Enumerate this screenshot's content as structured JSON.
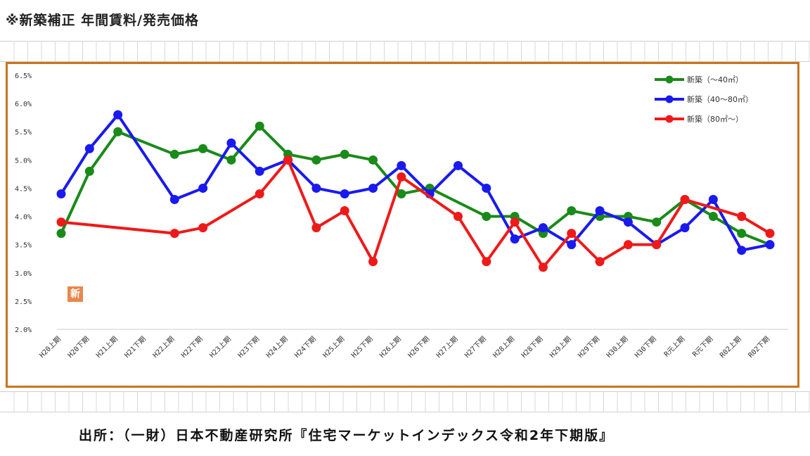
{
  "page": {
    "heading": "※新築補正 年間賃料/発売価格",
    "source": "出所：（一財）日本不動産研究所『住宅マーケットインデックス令和2年下期版』",
    "badge": "新"
  },
  "chart_data": {
    "type": "line",
    "title": "",
    "xlabel": "",
    "ylabel": "",
    "ylim": [
      0.02,
      0.065
    ],
    "y_ticks": [
      "6.5%",
      "6.0%",
      "5.5%",
      "5.0%",
      "4.5%",
      "4.0%",
      "3.5%",
      "3.0%",
      "2.5%",
      "2.0%"
    ],
    "y_tick_values": [
      0.065,
      0.06,
      0.055,
      0.05,
      0.045,
      0.04,
      0.035,
      0.03,
      0.025,
      0.02
    ],
    "grid": "horizontal-baseline",
    "legend_position": "top-right",
    "categories": [
      "H20上期",
      "H20下期",
      "H21上期",
      "H21下期",
      "H22上期",
      "H22下期",
      "H23上期",
      "H23下期",
      "H24上期",
      "H24下期",
      "H25上期",
      "H25下期",
      "H26上期",
      "H26下期",
      "H27上期",
      "H27下期",
      "H28上期",
      "H28下期",
      "H29上期",
      "H29下期",
      "H30上期",
      "H30下期",
      "R元上期",
      "R元下期",
      "R02上期",
      "R02下期"
    ],
    "series": [
      {
        "name": "新築（～40㎡）",
        "color": "#1a8a1a",
        "values": [
          0.037,
          0.048,
          0.055,
          null,
          0.051,
          0.052,
          0.05,
          0.056,
          0.051,
          0.05,
          0.051,
          0.05,
          0.044,
          0.045,
          null,
          0.04,
          0.04,
          0.037,
          0.041,
          0.04,
          0.04,
          0.039,
          0.043,
          0.04,
          0.037,
          0.035
        ]
      },
      {
        "name": "新築（40～80㎡）",
        "color": "#1a1aee",
        "values": [
          0.044,
          0.052,
          0.058,
          null,
          0.043,
          0.045,
          0.053,
          0.048,
          0.05,
          0.045,
          0.044,
          0.045,
          0.049,
          0.044,
          0.049,
          0.045,
          0.036,
          0.038,
          0.035,
          0.041,
          0.039,
          0.035,
          0.038,
          0.043,
          0.034,
          0.035
        ]
      },
      {
        "name": "新築（80㎡～）",
        "color": "#ee1a1a",
        "values": [
          0.039,
          null,
          null,
          null,
          0.037,
          0.038,
          null,
          0.044,
          0.05,
          0.038,
          0.041,
          0.032,
          0.047,
          null,
          0.04,
          0.032,
          0.039,
          0.031,
          0.037,
          0.032,
          0.035,
          0.035,
          0.043,
          null,
          0.04,
          0.037
        ]
      }
    ]
  }
}
